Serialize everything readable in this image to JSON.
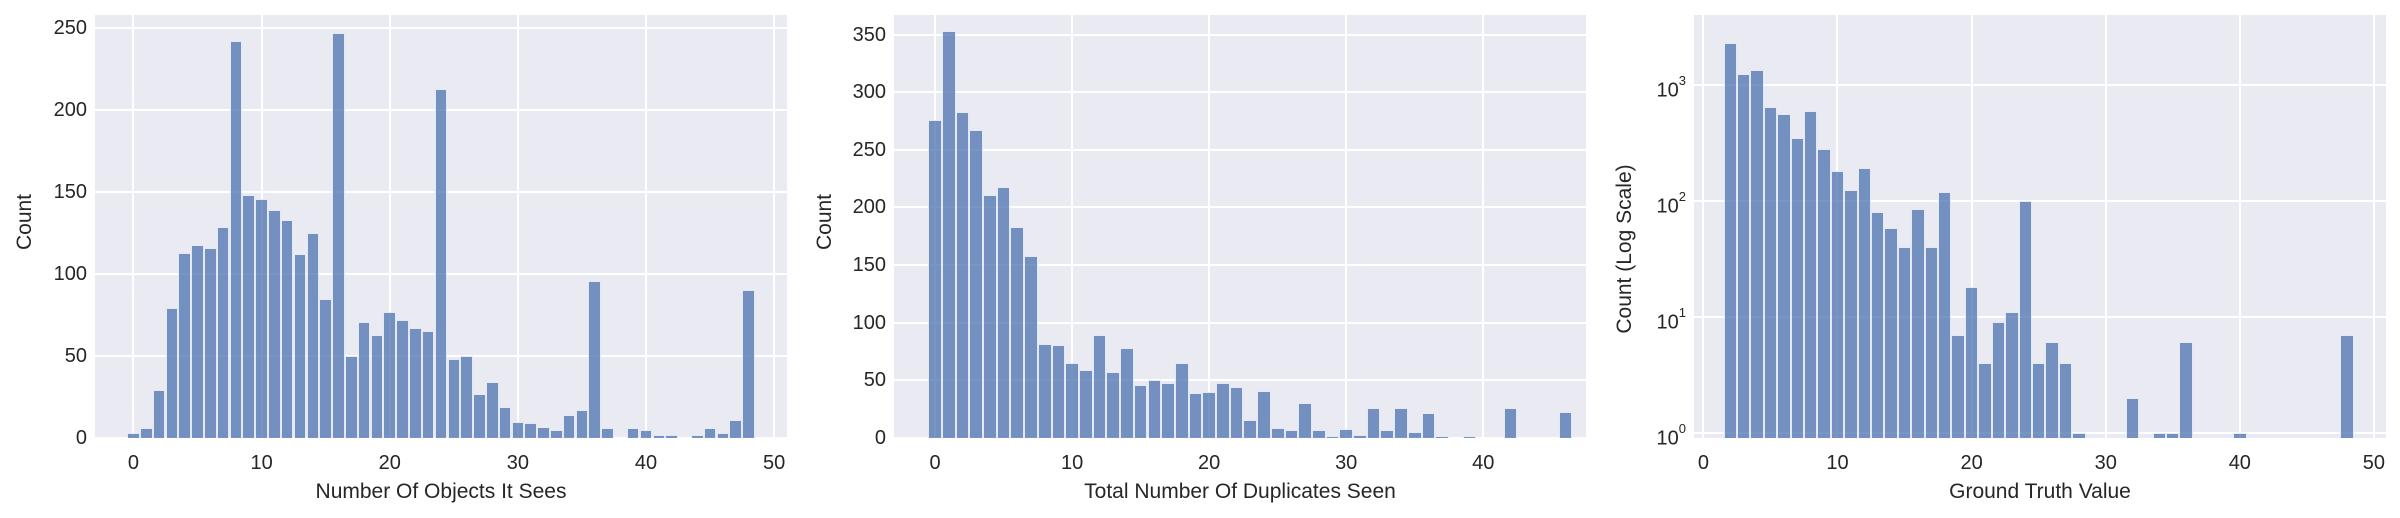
{
  "chart_data": [
    {
      "type": "bar",
      "subtype": "histogram",
      "title": "",
      "xlabel": "Number Of Objects It Sees",
      "ylabel": "Count",
      "xlim": [
        -3,
        51
      ],
      "ylim": [
        0,
        258
      ],
      "yscale": "linear",
      "xticks": [
        "0",
        "10",
        "20",
        "30",
        "40",
        "50"
      ],
      "yticks": [
        "0",
        "50",
        "100",
        "150",
        "200",
        "250"
      ],
      "grid": true,
      "bin_width": 0.98,
      "bin_start": -0.5,
      "x": [
        0,
        1,
        2,
        3,
        4,
        5,
        6,
        7,
        8,
        9,
        10,
        11,
        12,
        13,
        14,
        15,
        16,
        17,
        18,
        19,
        20,
        21,
        22,
        23,
        24,
        25,
        26,
        27,
        28,
        29,
        30,
        31,
        32,
        33,
        34,
        35,
        36,
        37,
        38,
        39,
        40,
        41,
        42,
        43,
        44,
        45,
        46,
        47,
        48
      ],
      "values": [
        3,
        6,
        29,
        79,
        113,
        118,
        116,
        129,
        242,
        148,
        146,
        139,
        133,
        112,
        125,
        85,
        247,
        50,
        71,
        63,
        77,
        72,
        67,
        65,
        213,
        48,
        50,
        27,
        34,
        19,
        10,
        9,
        7,
        5,
        14,
        17,
        96,
        6,
        0,
        6,
        5,
        2,
        2,
        0,
        2,
        6,
        3,
        11,
        90
      ]
    },
    {
      "type": "bar",
      "subtype": "histogram",
      "title": "",
      "xlabel": "Total Number Of Duplicates Seen",
      "ylabel": "Count",
      "xlim": [
        -3,
        47.5
      ],
      "ylim": [
        0,
        367
      ],
      "yscale": "linear",
      "xticks": [
        "0",
        "10",
        "20",
        "30",
        "40"
      ],
      "yticks": [
        "0",
        "50",
        "100",
        "150",
        "200",
        "250",
        "300",
        "350"
      ],
      "grid": true,
      "bin_width": 1.0,
      "bin_start": -0.5,
      "x": [
        0,
        1,
        2,
        3,
        4,
        5,
        6,
        7,
        8,
        9,
        10,
        11,
        12,
        13,
        14,
        15,
        16,
        17,
        18,
        19,
        20,
        21,
        22,
        23,
        24,
        25,
        26,
        27,
        28,
        29,
        30,
        31,
        32,
        33,
        34,
        35,
        36,
        37,
        38,
        39,
        40,
        41,
        42,
        43,
        44,
        45,
        46
      ],
      "values": [
        276,
        353,
        283,
        267,
        211,
        218,
        183,
        158,
        82,
        81,
        65,
        59,
        89,
        57,
        78,
        46,
        50,
        48,
        65,
        39,
        40,
        48,
        44,
        16,
        41,
        9,
        7,
        30,
        7,
        2,
        8,
        3,
        26,
        7,
        26,
        5,
        22,
        2,
        0,
        1,
        0,
        0,
        26,
        0,
        0,
        0,
        23
      ]
    },
    {
      "type": "bar",
      "subtype": "histogram",
      "title": "",
      "xlabel": "Ground Truth Value",
      "ylabel": "Count (Log Scale)",
      "xlim": [
        -0.7,
        50.9
      ],
      "ylim": [
        0.9,
        4000
      ],
      "yscale": "log",
      "xticks": [
        "0",
        "10",
        "20",
        "30",
        "40",
        "50"
      ],
      "yticks": [
        "10^0",
        "10^1",
        "10^2",
        "10^3"
      ],
      "grid": true,
      "bin_width": 1.0,
      "bin_start": 1.5,
      "x": [
        2,
        3,
        4,
        5,
        6,
        7,
        8,
        9,
        10,
        11,
        12,
        13,
        14,
        15,
        16,
        17,
        18,
        19,
        20,
        21,
        22,
        23,
        24,
        25,
        26,
        27,
        28,
        29,
        30,
        31,
        32,
        33,
        34,
        35,
        36,
        37,
        38,
        39,
        40,
        41,
        42,
        43,
        44,
        45,
        46,
        47,
        48
      ],
      "values": [
        2300,
        1250,
        1350,
        650,
        560,
        350,
        600,
        280,
        180,
        125,
        190,
        80,
        58,
        40,
        85,
        40,
        120,
        7,
        18,
        4,
        9,
        11,
        100,
        4,
        6,
        4,
        1,
        0,
        0,
        0,
        2,
        0,
        1,
        1,
        6,
        0,
        0,
        0,
        1,
        0,
        0,
        0,
        0,
        0,
        0,
        0,
        7
      ]
    }
  ],
  "panels": [
    {
      "xlabel": "Number Of Objects It Sees",
      "ylabel": "Count"
    },
    {
      "xlabel": "Total Number Of Duplicates Seen",
      "ylabel": "Count"
    },
    {
      "xlabel": "Ground Truth Value",
      "ylabel": "Count (Log Scale)"
    }
  ],
  "style": {
    "bar_color": "#4c72b0",
    "plot_background": "#eaeaf2",
    "grid_color": "#ffffff"
  }
}
